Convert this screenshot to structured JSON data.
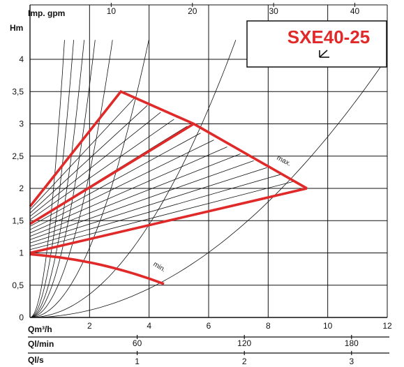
{
  "chart_data": {
    "type": "line",
    "title": "SXE40-25",
    "ylabel": "Hm",
    "xlabel_primary": "Qm³/h",
    "xlabel_lmin": "Ql/min",
    "xlabel_ls": "Ql/s",
    "xlabel_gpm": "Imp. gpm",
    "xlim": [
      0,
      12
    ],
    "ylim": [
      0,
      4.3
    ],
    "y_ticks": [
      "0",
      "0,5",
      "1",
      "1,5",
      "2",
      "2,5",
      "3",
      "3,5",
      "4"
    ],
    "y_tick_values": [
      0,
      0.5,
      1,
      1.5,
      2,
      2.5,
      3,
      3.5,
      4
    ],
    "x_ticks": [
      "2",
      "4",
      "6",
      "8",
      "10",
      "12"
    ],
    "x_tick_values": [
      2,
      4,
      6,
      8,
      10,
      12
    ],
    "gpm_ticks": [
      "10",
      "20",
      "30",
      "40"
    ],
    "lmin_ticks": [
      "60",
      "120",
      "180"
    ],
    "ls_ticks": [
      "1",
      "2",
      "3"
    ],
    "grid": true,
    "series": [
      {
        "name": "max.",
        "x": [
          0,
          3.05,
          5.5,
          9.3
        ],
        "y": [
          1.72,
          3.5,
          3.0,
          2.0
        ]
      },
      {
        "x": [
          0,
          5.5
        ],
        "y": [
          1.45,
          3.0
        ]
      },
      {
        "x": [
          0,
          9.3
        ],
        "y": [
          1.0,
          2.0
        ]
      },
      {
        "name": "min.",
        "x": [
          0,
          1.5,
          3.0,
          4.5
        ],
        "y": [
          0.98,
          0.9,
          0.72,
          0.52
        ]
      }
    ],
    "system_curve_coefficients": [
      3.2,
      2.0,
      1.3,
      0.9,
      0.56,
      0.27,
      0.09,
      0.028
    ]
  }
}
